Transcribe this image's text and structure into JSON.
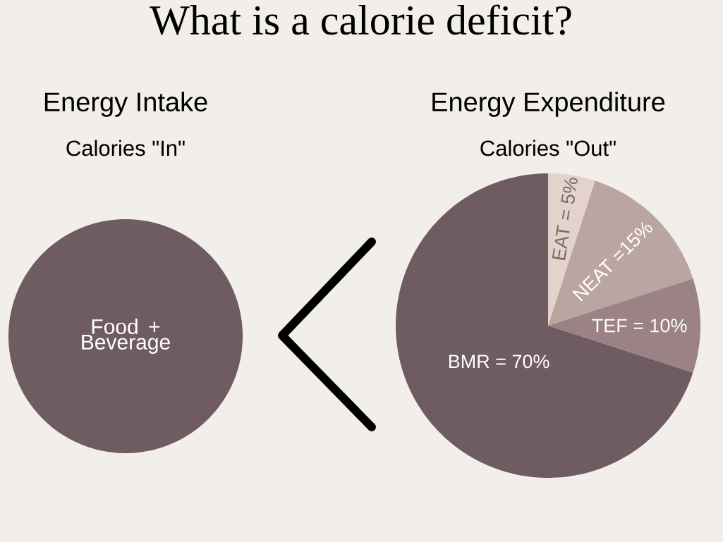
{
  "chart_data": [
    {
      "type": "other",
      "title": "What is a calorie deficit?"
    },
    {
      "type": "pie",
      "title": "Energy Intake",
      "subtitle": "Calories \"In\"",
      "categories": [
        "Food + Beverage"
      ],
      "values": [
        100
      ],
      "colors": [
        "#6e5c62"
      ]
    },
    {
      "type": "pie",
      "title": "Energy Expenditure",
      "subtitle": "Calories \"Out\"",
      "categories": [
        "EAT = 5%",
        "NEAT =15%",
        "TEF = 10%",
        "BMR = 70%"
      ],
      "values": [
        5,
        15,
        10,
        70
      ],
      "colors": [
        "#e3d3cc",
        "#bba5a2",
        "#9b8385",
        "#6e5c62"
      ]
    }
  ]
}
